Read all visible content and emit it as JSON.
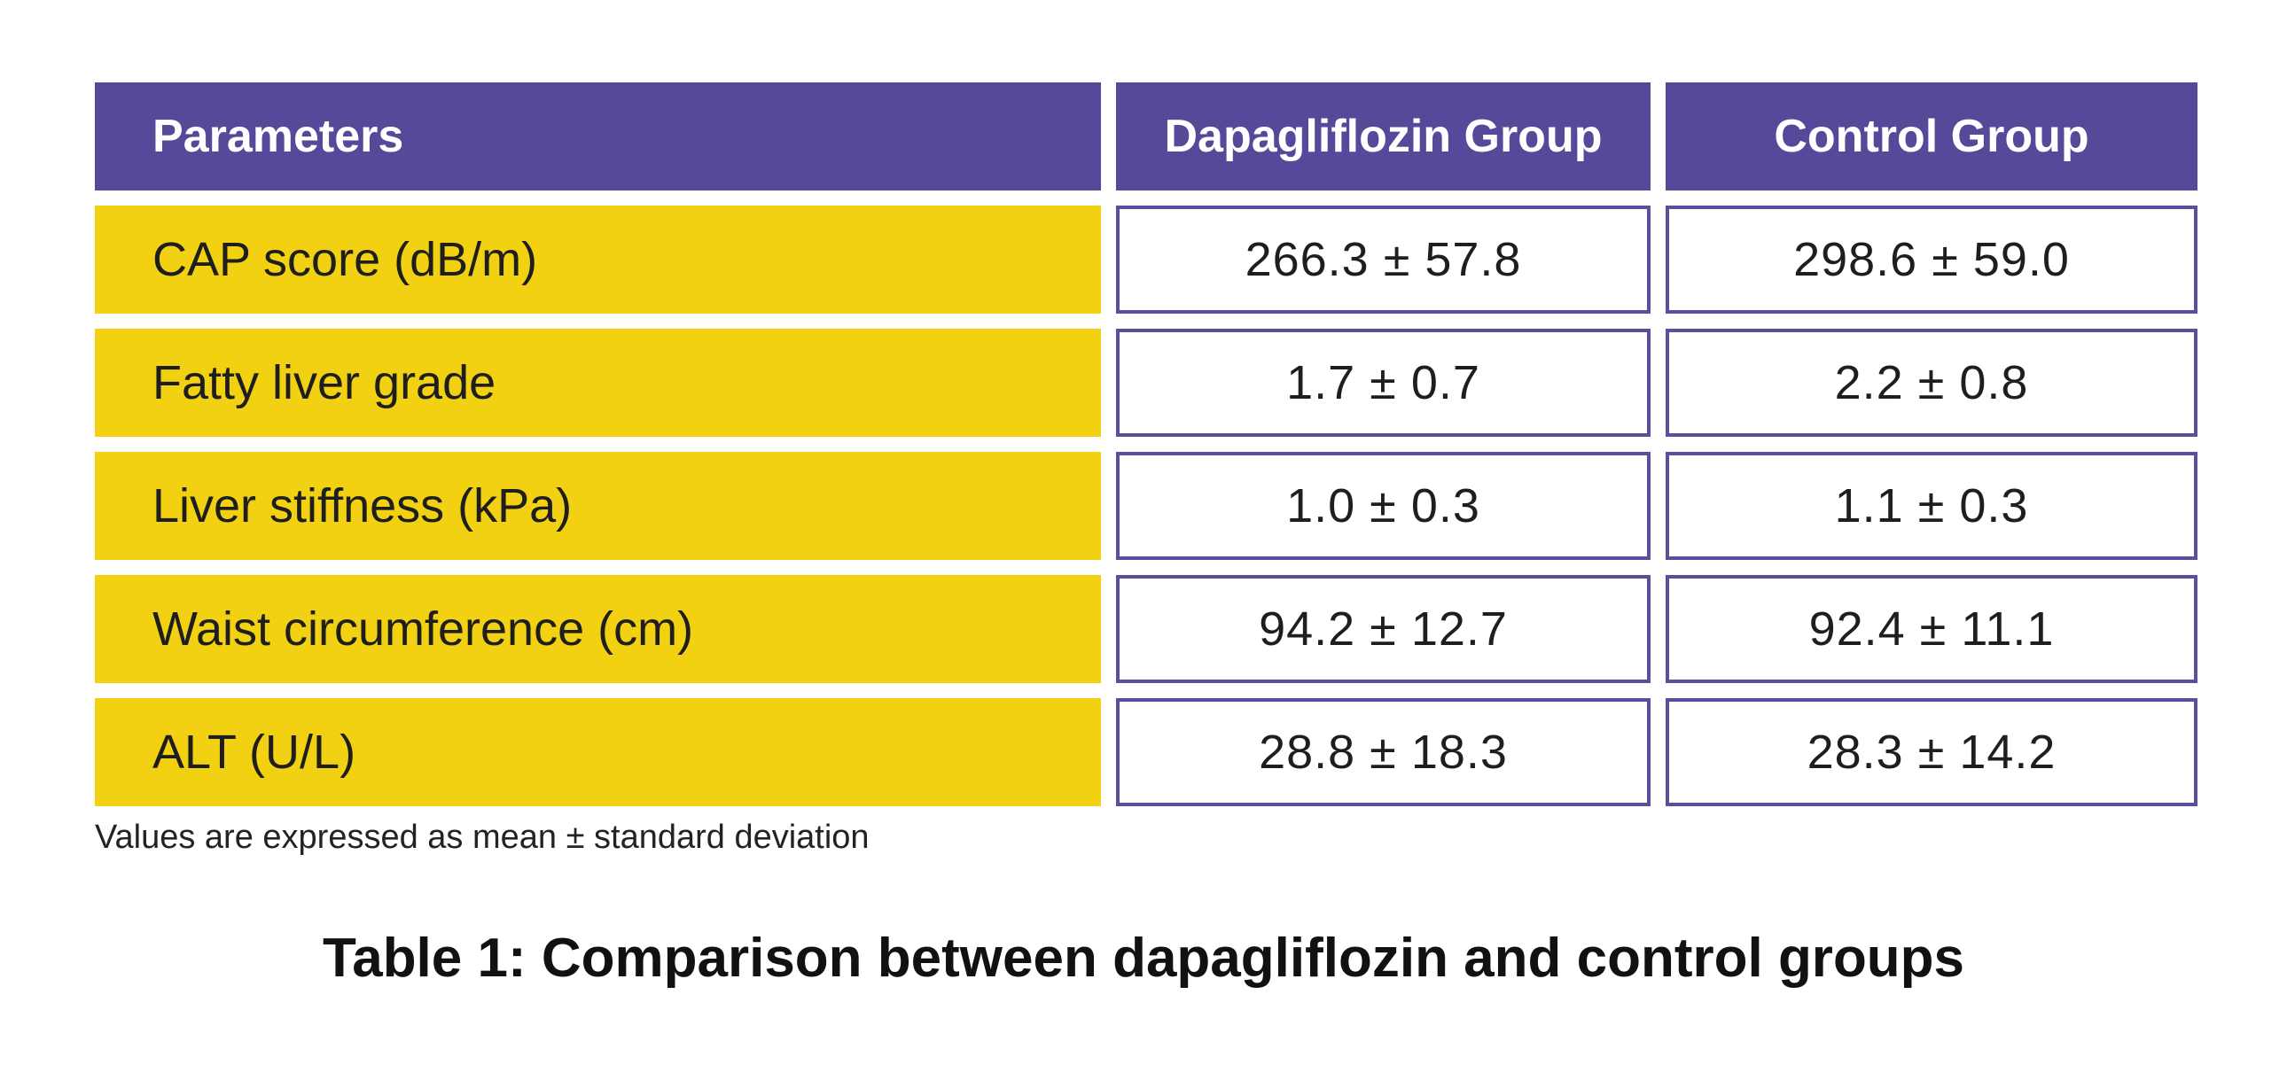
{
  "table": {
    "columns": [
      "Parameters",
      "Dapagliflozin Group",
      "Control Group"
    ],
    "rows": [
      {
        "parameter": "CAP score (dB/m)",
        "dapagliflozin": "266.3 ± 57.8",
        "control": "298.6 ± 59.0"
      },
      {
        "parameter": "Fatty liver grade",
        "dapagliflozin": "1.7 ± 0.7",
        "control": "2.2 ± 0.8"
      },
      {
        "parameter": "Liver stiffness (kPa)",
        "dapagliflozin": "1.0 ± 0.3",
        "control": "1.1 ± 0.3"
      },
      {
        "parameter": "Waist circumference (cm)",
        "dapagliflozin": "94.2 ± 12.7",
        "control": "92.4 ± 11.1"
      },
      {
        "parameter": "ALT (U/L)",
        "dapagliflozin": "28.8 ± 18.3",
        "control": "28.3 ± 14.2"
      }
    ],
    "footnote": "Values are expressed as mean ± standard deviation",
    "caption": "Table 1: Comparison between dapagliflozin and control groups"
  },
  "chart_data": {
    "type": "table",
    "title": "Table 1: Comparison between dapagliflozin and control groups",
    "columns": [
      "Parameters",
      "Dapagliflozin Group",
      "Control Group"
    ],
    "series": [
      {
        "name": "Dapagliflozin Group",
        "values": [
          266.3,
          1.7,
          1.0,
          94.2,
          28.8
        ],
        "sd": [
          57.8,
          0.7,
          0.3,
          12.7,
          18.3
        ]
      },
      {
        "name": "Control Group",
        "values": [
          298.6,
          2.2,
          1.1,
          92.4,
          28.3
        ],
        "sd": [
          59.0,
          0.8,
          0.3,
          11.1,
          14.2
        ]
      }
    ],
    "categories": [
      "CAP score (dB/m)",
      "Fatty liver grade",
      "Liver stiffness (kPa)",
      "Waist circumference (cm)",
      "ALT (U/L)"
    ],
    "note": "Values are expressed as mean ± standard deviation"
  },
  "colors": {
    "header_purple": "#554a9a",
    "row_yellow": "#f2d112",
    "cell_border": "#5a4f9f",
    "text_dark": "#1e1e1c"
  }
}
